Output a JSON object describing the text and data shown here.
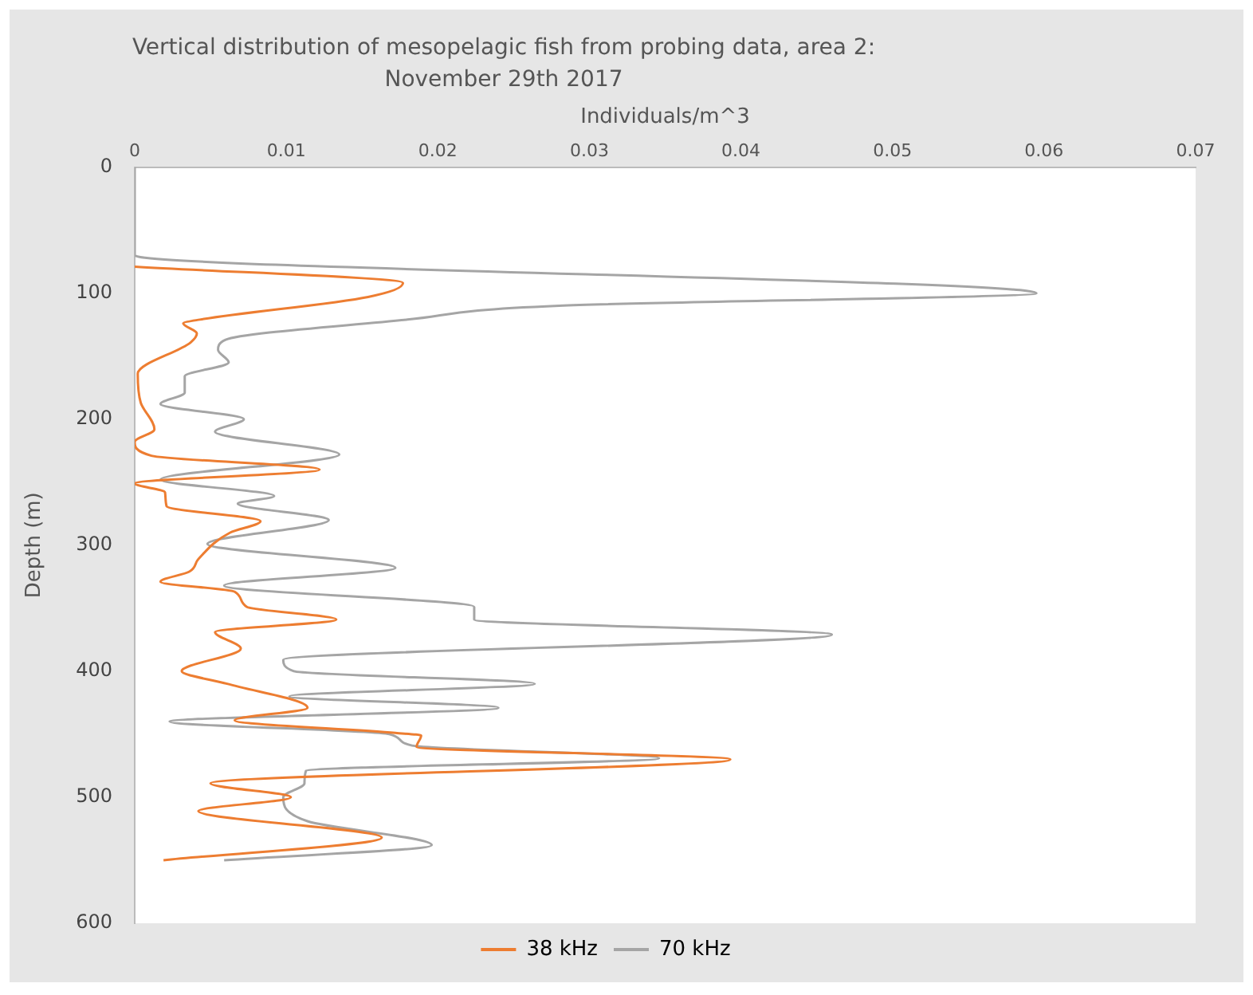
{
  "chart_data": {
    "type": "line",
    "title": "Vertical distribution of mesopelagic fish from probing data, area 2: November 29th 2017",
    "xlabel": "Individuals/m^3",
    "ylabel": "Depth (m)",
    "orientation": "horizontal",
    "xlim": [
      0,
      0.07
    ],
    "xticks": [
      0,
      0.01,
      0.02,
      0.03,
      0.04,
      0.05,
      0.06,
      0.07
    ],
    "ylim": [
      600,
      0
    ],
    "yticks": [
      0,
      100,
      200,
      300,
      400,
      500,
      600
    ],
    "grid": false,
    "legend": "bottom",
    "marker": "none",
    "line_style": "solid",
    "series": [
      {
        "name": "38 kHz",
        "color": "#ed7d31",
        "x": [
          79,
          92,
          103,
          121,
          124,
          132,
          139,
          164,
          187,
          208,
          218,
          229,
          240,
          251,
          258,
          269,
          281,
          290,
          311,
          321,
          329,
          337,
          349,
          359,
          369,
          382,
          400,
          410,
          429,
          439,
          449,
          451,
          460,
          470,
          489,
          500,
          511,
          532,
          550
        ],
        "values": [
          0,
          0.0177,
          0.0154,
          0.0043,
          0.0032,
          0.0041,
          0.0037,
          0.0002,
          0.0004,
          0.0013,
          0,
          0.0011,
          0.0122,
          0,
          0.002,
          0.0021,
          0.0083,
          0.0063,
          0.0042,
          0.0036,
          0.0017,
          0.0066,
          0.0074,
          0.0133,
          0.0053,
          0.007,
          0.0031,
          0.0061,
          0.0114,
          0.0066,
          0.0172,
          0.0189,
          0.0186,
          0.0393,
          0.005,
          0.0103,
          0.0042,
          0.0163,
          0.0019
        ]
      },
      {
        "name": "70 kHz",
        "color": "#a5a5a5",
        "x": [
          0,
          70,
          100,
          110,
          121,
          137,
          145,
          155,
          166,
          179,
          188,
          200,
          210,
          228,
          248,
          261,
          267,
          280,
          299,
          318,
          332,
          349,
          359,
          371,
          391,
          400,
          410,
          420,
          429,
          440,
          450,
          459,
          469,
          479,
          489,
          500,
          519,
          538,
          550
        ],
        "values": [
          0,
          0,
          0.0595,
          0.028,
          0.018,
          0.006,
          0.0055,
          0.0062,
          0.0033,
          0.0033,
          0.0017,
          0.0072,
          0.0053,
          0.0135,
          0.0017,
          0.0092,
          0.0068,
          0.0128,
          0.0048,
          0.0172,
          0.0059,
          0.0224,
          0.0224,
          0.046,
          0.0098,
          0.0105,
          0.0264,
          0.0102,
          0.024,
          0.0023,
          0.0168,
          0.0183,
          0.0346,
          0.0113,
          0.0112,
          0.0098,
          0.0114,
          0.0196,
          0.0059
        ]
      }
    ]
  }
}
